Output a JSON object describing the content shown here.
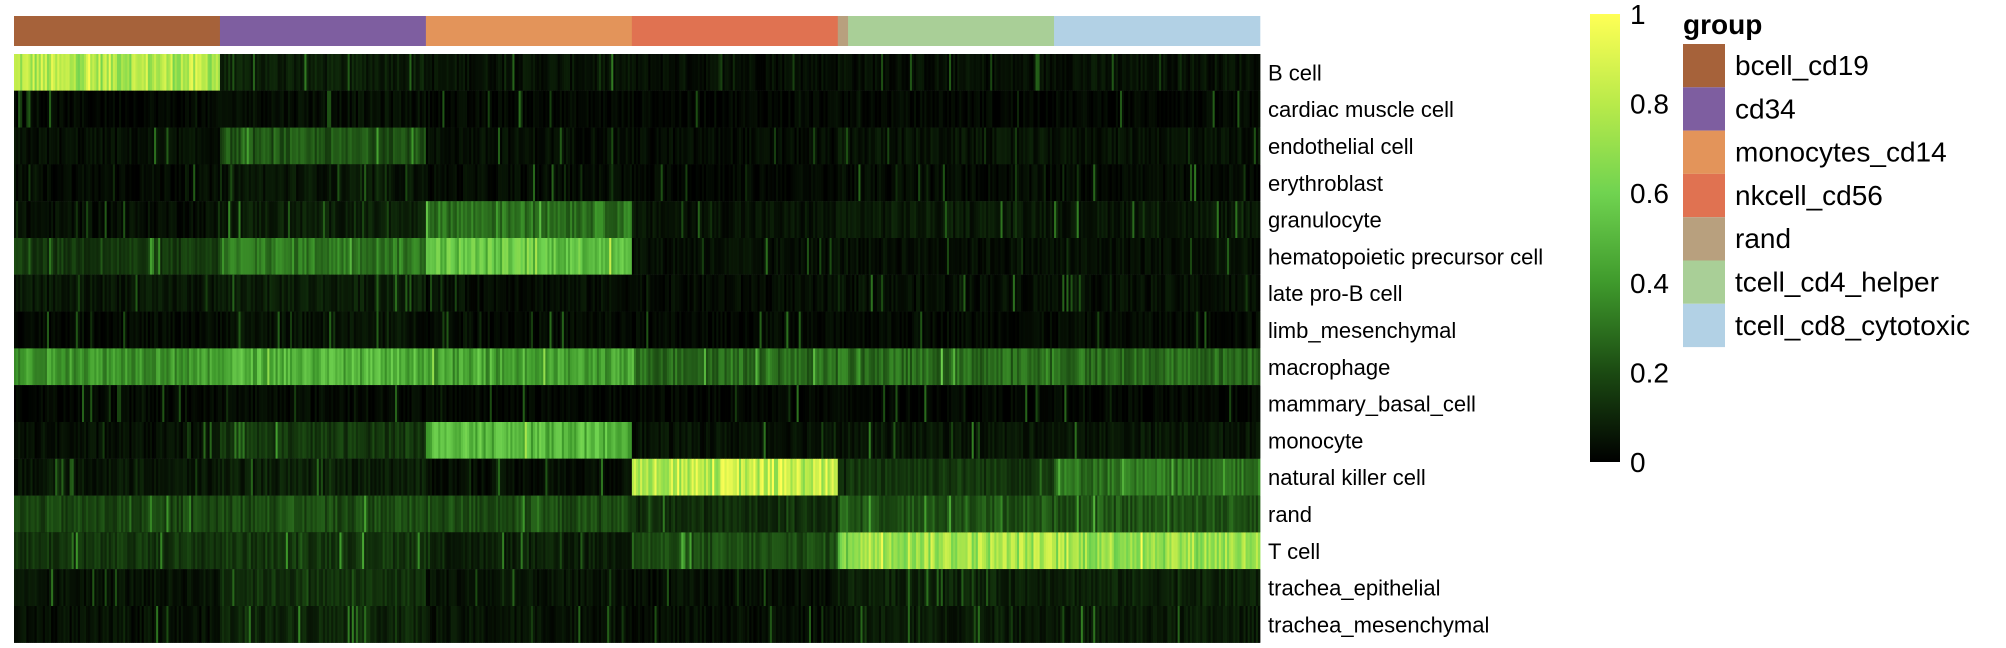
{
  "chart_data": {
    "type": "heatmap",
    "title": "",
    "rows": [
      "B cell",
      "cardiac muscle cell",
      "endothelial cell",
      "erythroblast",
      "granulocyte",
      "hematopoietic precursor cell",
      "late pro-B cell",
      "limb_mesenchymal",
      "macrophage",
      "mammary_basal_cell",
      "monocyte",
      "natural killer cell",
      "rand",
      "T cell",
      "trachea_epithelial",
      "trachea_mesenchymal"
    ],
    "groups": [
      {
        "name": "bcell_cd19",
        "color": "#a6623a",
        "columns": 100
      },
      {
        "name": "cd34",
        "color": "#7e5ea0",
        "columns": 100
      },
      {
        "name": "monocytes_cd14",
        "color": "#e3945a",
        "columns": 100
      },
      {
        "name": "nkcell_cd56",
        "color": "#e07251",
        "columns": 100
      },
      {
        "name": "rand",
        "color": "#b8a07e",
        "columns": 5
      },
      {
        "name": "tcell_cd4_helper",
        "color": "#a9cf97",
        "columns": 100
      },
      {
        "name": "tcell_cd8_cytotoxic",
        "color": "#b2d1e5",
        "columns": 100
      }
    ],
    "mean_scores": [
      [
        0.78,
        0.08,
        0.05,
        0.04,
        0.05,
        0.04,
        0.05
      ],
      [
        0.02,
        0.04,
        0.02,
        0.02,
        0.02,
        0.02,
        0.02
      ],
      [
        0.04,
        0.22,
        0.04,
        0.03,
        0.06,
        0.05,
        0.05
      ],
      [
        0.03,
        0.06,
        0.03,
        0.02,
        0.04,
        0.03,
        0.03
      ],
      [
        0.04,
        0.08,
        0.3,
        0.05,
        0.06,
        0.07,
        0.06
      ],
      [
        0.15,
        0.32,
        0.55,
        0.04,
        0.05,
        0.04,
        0.04
      ],
      [
        0.06,
        0.08,
        0.04,
        0.03,
        0.05,
        0.04,
        0.04
      ],
      [
        0.03,
        0.05,
        0.03,
        0.02,
        0.03,
        0.03,
        0.03
      ],
      [
        0.4,
        0.48,
        0.42,
        0.28,
        0.3,
        0.28,
        0.28
      ],
      [
        0.02,
        0.03,
        0.02,
        0.02,
        0.02,
        0.02,
        0.02
      ],
      [
        0.04,
        0.15,
        0.5,
        0.05,
        0.06,
        0.06,
        0.06
      ],
      [
        0.06,
        0.08,
        0.04,
        0.82,
        0.1,
        0.15,
        0.3
      ],
      [
        0.18,
        0.2,
        0.2,
        0.12,
        0.25,
        0.22,
        0.22
      ],
      [
        0.14,
        0.15,
        0.08,
        0.2,
        0.6,
        0.75,
        0.72
      ],
      [
        0.05,
        0.13,
        0.05,
        0.04,
        0.08,
        0.09,
        0.09
      ],
      [
        0.04,
        0.1,
        0.05,
        0.04,
        0.07,
        0.07,
        0.07
      ]
    ],
    "colorbar": {
      "min": 0,
      "max": 1,
      "ticks": [
        "0",
        "0.2",
        "0.4",
        "0.6",
        "0.8",
        "1"
      ],
      "colors": [
        "#000000",
        "#1b4a12",
        "#3f9a2c",
        "#70d350",
        "#b9ea4a",
        "#ffff55"
      ]
    },
    "legend": {
      "title": "group",
      "position": "right"
    },
    "grid": false
  }
}
